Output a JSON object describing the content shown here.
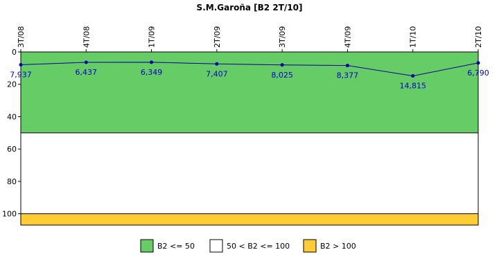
{
  "chart_data": {
    "type": "line",
    "title": "S.M.Garoña [B2 2T/10]",
    "categories": [
      "3T/08",
      "4T/08",
      "1T/09",
      "2T/09",
      "3T/09",
      "4T/09",
      "1T/10",
      "2T/10"
    ],
    "series": [
      {
        "values": [
          7.937,
          6.437,
          6.349,
          7.407,
          8.025,
          8.377,
          14.815,
          6.79
        ],
        "labels": [
          "7,937",
          "6,437",
          "6,349",
          "7,407",
          "8,025",
          "8,377",
          "14,815",
          "6,790"
        ],
        "color": "#000099",
        "marker_color": "#0000aa"
      }
    ],
    "y_axis": {
      "range": [
        0,
        107
      ],
      "reversed": true,
      "ticks": [
        0,
        20,
        40,
        60,
        80,
        100
      ],
      "tick_labels": [
        "0",
        "20",
        "40",
        "60",
        "80",
        "100"
      ]
    },
    "bands": [
      {
        "from": 0,
        "to": 50,
        "color": "#66cc66",
        "legend": "B2 <= 50"
      },
      {
        "from": 50,
        "to": 100,
        "color": "#ffffff",
        "legend": "50 < B2 <= 100"
      },
      {
        "from": 100,
        "to": 107,
        "color": "#ffcc33",
        "legend": "B2 > 100"
      }
    ],
    "grid": false,
    "legend_position": "bottom"
  }
}
